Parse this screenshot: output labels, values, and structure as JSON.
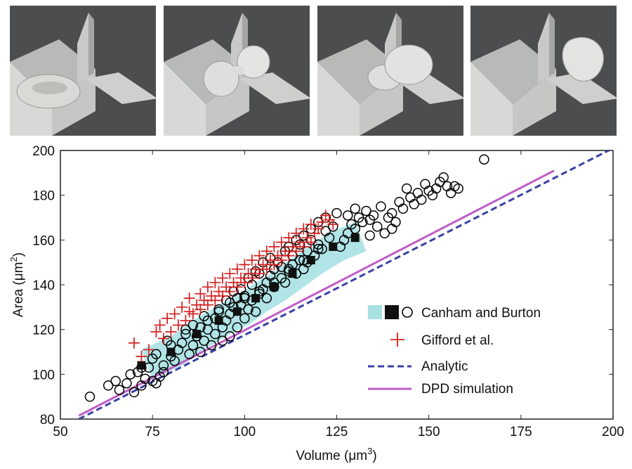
{
  "figure": {
    "panels": [
      {
        "id": "panel-1",
        "shape": "biconcave discocyte red blood cell before channel entrance"
      },
      {
        "id": "panel-2",
        "shape": "cell squeezing into channel with two bulbs"
      },
      {
        "id": "panel-3",
        "shape": "cell elongated through channel"
      },
      {
        "id": "panel-4",
        "shape": "deformed cell exiting channel"
      }
    ]
  },
  "chart_data": {
    "type": "scatter",
    "xlabel": "Volume (μm³)",
    "ylabel": "Area (μm²)",
    "xlabel_main": "Volume (",
    "xlabel_unit": "μm",
    "xlabel_exp": "3",
    "ylabel_main": "Area (",
    "ylabel_unit": "μm",
    "ylabel_exp": "2",
    "close_paren": ")",
    "xlim": [
      50,
      200
    ],
    "ylim": [
      80,
      200
    ],
    "xticks": [
      50,
      75,
      100,
      125,
      150,
      175,
      200
    ],
    "yticks": [
      80,
      100,
      120,
      140,
      160,
      180,
      200
    ],
    "legend": [
      {
        "label": "Canham and Burton",
        "marker": "shaded-region + square + circle"
      },
      {
        "label": "Gifford et al.",
        "marker": "plus"
      },
      {
        "label": "Analytic",
        "marker": "dashed-line"
      },
      {
        "label": "DPD simulation",
        "marker": "solid-line"
      }
    ],
    "colors": {
      "circles": "#000000",
      "squares": "#111111",
      "region": "#a9e1e3",
      "plus": "#d42020",
      "analytic": "#3b3fa6",
      "dpd": "#c05cc6"
    },
    "series": [
      {
        "name": "Analytic",
        "style": "dashed",
        "x": [
          55,
          200
        ],
        "y": [
          80,
          201
        ]
      },
      {
        "name": "DPD simulation",
        "style": "solid",
        "x": [
          55,
          184
        ],
        "y": [
          81.5,
          191
        ]
      },
      {
        "name": "Canham and Burton (circles)",
        "x": [
          58,
          63,
          65,
          66,
          68,
          69,
          70,
          71,
          72,
          73,
          74,
          75,
          75,
          76,
          77,
          78,
          78,
          80,
          80,
          81,
          82,
          83,
          84,
          85,
          86,
          87,
          88,
          88,
          89,
          90,
          90,
          91,
          92,
          92,
          93,
          94,
          94,
          95,
          95,
          96,
          96,
          97,
          97,
          98,
          98,
          99,
          99,
          100,
          100,
          101,
          101,
          102,
          102,
          103,
          103,
          104,
          104,
          105,
          105,
          106,
          106,
          107,
          107,
          108,
          108,
          109,
          110,
          110,
          111,
          111,
          112,
          112,
          113,
          113,
          114,
          114,
          115,
          115,
          116,
          116,
          117,
          117,
          118,
          118,
          119,
          120,
          120,
          121,
          122,
          122,
          123,
          124,
          125,
          126,
          127,
          128,
          128,
          129,
          130,
          130,
          131,
          132,
          133,
          134,
          134,
          135,
          136,
          137,
          138,
          139,
          140,
          140,
          141,
          142,
          143,
          144,
          145,
          146,
          147,
          148,
          149,
          150,
          151,
          152,
          153,
          154,
          155,
          156,
          157,
          158,
          165,
          72,
          76,
          79,
          84,
          86,
          89,
          93,
          96,
          100,
          104,
          108,
          112,
          116,
          120
        ],
        "y": [
          90,
          95,
          97,
          93,
          96,
          100,
          92,
          101,
          95,
          98,
          103,
          97,
          107,
          96,
          99,
          104,
          101,
          108,
          113,
          106,
          111,
          114,
          118,
          109,
          113,
          117,
          121,
          110,
          115,
          120,
          124,
          113,
          118,
          125,
          129,
          115,
          121,
          124,
          133,
          117,
          127,
          130,
          137,
          121,
          134,
          131,
          138,
          125,
          135,
          129,
          143,
          133,
          140,
          128,
          146,
          136,
          145,
          138,
          150,
          134,
          141,
          144,
          152,
          139,
          147,
          150,
          143,
          148,
          155,
          141,
          146,
          157,
          149,
          153,
          145,
          160,
          151,
          158,
          147,
          162,
          150,
          155,
          160,
          165,
          153,
          158,
          168,
          156,
          164,
          170,
          161,
          166,
          172,
          157,
          160,
          163,
          171,
          167,
          165,
          174,
          170,
          168,
          173,
          162,
          169,
          171,
          166,
          175,
          163,
          170,
          172,
          165,
          168,
          177,
          174,
          183,
          179,
          176,
          181,
          178,
          185,
          182,
          180,
          183,
          186,
          188,
          184,
          181,
          184,
          183,
          196,
          103,
          109,
          115,
          120,
          122,
          126,
          128,
          132,
          134,
          137,
          141,
          147,
          151,
          156
        ]
      },
      {
        "name": "Canham and Burton (squares)",
        "x": [
          72,
          80,
          87,
          93,
          98,
          103,
          108,
          113,
          118,
          124,
          130
        ],
        "y": [
          104,
          110,
          118,
          124,
          128,
          134,
          139,
          145,
          151,
          157,
          161
        ]
      },
      {
        "name": "Gifford et al.",
        "x": [
          70,
          72,
          74,
          76,
          77,
          78,
          79,
          80,
          81,
          82,
          83,
          84,
          85,
          85,
          86,
          87,
          88,
          88,
          89,
          90,
          90,
          91,
          92,
          92,
          93,
          94,
          94,
          95,
          96,
          96,
          97,
          98,
          98,
          99,
          100,
          100,
          101,
          102,
          102,
          103,
          104,
          104,
          105,
          106,
          106,
          107,
          108,
          108,
          109,
          110,
          110,
          111,
          112,
          112,
          113,
          114,
          114,
          115,
          116,
          116,
          117,
          118,
          118,
          119,
          120,
          121,
          122,
          123,
          124
        ],
        "y": [
          114,
          108,
          111,
          119,
          122,
          116,
          125,
          119,
          127,
          122,
          130,
          124,
          128,
          134,
          127,
          131,
          129,
          136,
          133,
          131,
          139,
          135,
          133,
          141,
          137,
          135,
          143,
          139,
          137,
          145,
          141,
          139,
          147,
          143,
          141,
          149,
          145,
          143,
          151,
          147,
          145,
          153,
          149,
          147,
          155,
          151,
          149,
          157,
          153,
          151,
          159,
          155,
          153,
          161,
          157,
          155,
          163,
          159,
          157,
          165,
          161,
          159,
          167,
          163,
          165,
          168,
          171,
          169,
          167
        ]
      }
    ]
  }
}
